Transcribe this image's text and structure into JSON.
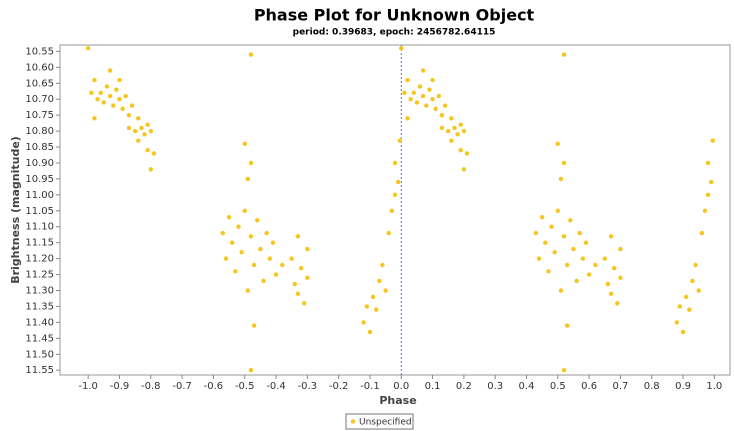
{
  "chart_data": {
    "type": "scatter",
    "title": "Phase Plot for Unknown Object",
    "subtitle": "period: 0.39683, epoch: 2456782.64115",
    "x_label": "Phase",
    "y_label": "Brightness (magnitude)",
    "xlim": [
      -1.09,
      1.05
    ],
    "ylim": [
      11.565,
      10.53
    ],
    "xticks": [
      {
        "value": -1,
        "label": "-1.0"
      },
      -0.9,
      -0.8,
      -0.7,
      -0.6,
      -0.5,
      -0.4,
      -0.3,
      -0.2,
      -0.1,
      {
        "value": 0,
        "label": "0.0"
      },
      0.1,
      0.2,
      0.3,
      0.4,
      0.5,
      0.6,
      0.7,
      0.8,
      0.9,
      {
        "value": 1,
        "label": "1.0"
      }
    ],
    "yticks": [
      10.55,
      {
        "value": 10.6,
        "label": "10.60"
      },
      10.65,
      {
        "value": 10.7,
        "label": "10.70"
      },
      10.75,
      {
        "value": 10.8,
        "label": "10.80"
      },
      10.85,
      {
        "value": 10.9,
        "label": "10.90"
      },
      10.95,
      {
        "value": 11,
        "label": "11.00"
      },
      11.05,
      {
        "value": 11.1,
        "label": "11.10"
      },
      11.15,
      {
        "value": 11.2,
        "label": "11.20"
      },
      11.25,
      {
        "value": 11.3,
        "label": "11.30"
      },
      11.35,
      {
        "value": 11.4,
        "label": "11.40"
      },
      11.45,
      {
        "value": 11.5,
        "label": "11.50"
      },
      11.55
    ],
    "grid": false,
    "crosshair_x": 0,
    "legend": "bottom",
    "series": [
      {
        "name": "Unspecified",
        "color": "#f7c51e",
        "x": [
          -1.0,
          -0.99,
          -0.98,
          -0.98,
          -0.97,
          -0.96,
          -0.95,
          -0.94,
          -0.93,
          -0.93,
          -0.92,
          -0.91,
          -0.9,
          -0.9,
          -0.89,
          -0.88,
          -0.87,
          -0.87,
          -0.86,
          -0.85,
          -0.84,
          -0.84,
          -0.83,
          -0.82,
          -0.81,
          -0.81,
          -0.8,
          -0.8,
          -0.79,
          -0.48,
          -0.48,
          -0.57,
          -0.56,
          -0.55,
          -0.54,
          -0.53,
          -0.52,
          -0.51,
          -0.5,
          -0.5,
          -0.49,
          -0.49,
          -0.48,
          -0.48,
          -0.47,
          -0.47,
          -0.46,
          -0.45,
          -0.44,
          -0.43,
          -0.42,
          -0.41,
          -0.4,
          -0.38,
          -0.35,
          -0.34,
          -0.33,
          -0.33,
          -0.32,
          -0.31,
          -0.3,
          -0.3,
          -0.12,
          -0.11,
          -0.1,
          -0.09,
          -0.08,
          -0.07,
          -0.06,
          -0.05,
          -0.04,
          -0.03,
          -0.02,
          -0.02,
          -0.01,
          -0.005,
          0,
          0.01,
          0.02,
          0.02,
          0.03,
          0.04,
          0.05,
          0.06,
          0.07,
          0.07,
          0.08,
          0.09,
          0.1,
          0.1,
          0.11,
          0.12,
          0.13,
          0.13,
          0.14,
          0.15,
          0.16,
          0.16,
          0.17,
          0.18,
          0.19,
          0.19,
          0.2,
          0.2,
          0.21,
          0.52,
          0.52,
          0.43,
          0.44,
          0.45,
          0.46,
          0.47,
          0.48,
          0.49,
          0.5,
          0.5,
          0.51,
          0.51,
          0.52,
          0.52,
          0.53,
          0.53,
          0.54,
          0.55,
          0.56,
          0.57,
          0.58,
          0.59,
          0.6,
          0.62,
          0.65,
          0.66,
          0.67,
          0.67,
          0.68,
          0.69,
          0.7,
          0.7,
          0.88,
          0.89,
          0.9,
          0.91,
          0.92,
          0.93,
          0.94,
          0.95,
          0.96,
          0.97,
          0.98,
          0.98,
          0.99,
          0.995
        ],
        "values": [
          10.54,
          10.68,
          10.64,
          10.76,
          10.7,
          10.68,
          10.71,
          10.66,
          10.61,
          10.69,
          10.72,
          10.67,
          10.7,
          10.64,
          10.73,
          10.69,
          10.75,
          10.79,
          10.72,
          10.8,
          10.76,
          10.83,
          10.79,
          10.81,
          10.78,
          10.86,
          10.8,
          10.92,
          10.87,
          10.56,
          11.55,
          11.12,
          11.2,
          11.07,
          11.15,
          11.24,
          11.1,
          11.18,
          11.05,
          10.84,
          10.95,
          11.3,
          10.9,
          11.13,
          11.22,
          11.41,
          11.08,
          11.17,
          11.27,
          11.12,
          11.2,
          11.15,
          11.25,
          11.22,
          11.2,
          11.28,
          11.13,
          11.31,
          11.23,
          11.34,
          11.17,
          11.26,
          11.4,
          11.35,
          11.43,
          11.32,
          11.36,
          11.27,
          11.22,
          11.3,
          11.12,
          11.05,
          11.0,
          10.9,
          10.96,
          10.83,
          10.54,
          10.68,
          10.64,
          10.76,
          10.7,
          10.68,
          10.71,
          10.66,
          10.61,
          10.69,
          10.72,
          10.67,
          10.7,
          10.64,
          10.73,
          10.69,
          10.75,
          10.79,
          10.72,
          10.8,
          10.76,
          10.83,
          10.79,
          10.81,
          10.78,
          10.86,
          10.8,
          10.92,
          10.87,
          10.56,
          11.55,
          11.12,
          11.2,
          11.07,
          11.15,
          11.24,
          11.1,
          11.18,
          11.05,
          10.84,
          10.95,
          11.3,
          10.9,
          11.13,
          11.22,
          11.41,
          11.08,
          11.17,
          11.27,
          11.12,
          11.2,
          11.15,
          11.25,
          11.22,
          11.2,
          11.28,
          11.13,
          11.31,
          11.23,
          11.34,
          11.17,
          11.26,
          11.4,
          11.35,
          11.43,
          11.32,
          11.36,
          11.27,
          11.22,
          11.3,
          11.12,
          11.05,
          11.0,
          10.9,
          10.96,
          10.83
        ]
      }
    ]
  }
}
